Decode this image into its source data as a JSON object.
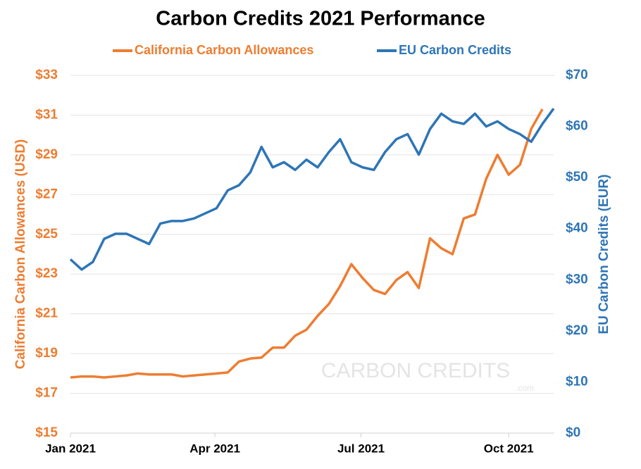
{
  "chart_data": {
    "type": "line",
    "title": "Carbon Credits 2021 Performance",
    "ylabel": "California Carbon Allowances (USD)",
    "y2label": "EU Carbon Credits (EUR)",
    "watermark": "CARBON CREDITS",
    "watermark_sub": ".com",
    "legend": "top",
    "x": [
      0,
      7,
      14,
      21,
      28,
      35,
      42,
      49,
      56,
      63,
      70,
      77,
      84,
      91,
      98,
      105,
      112,
      119,
      126,
      133,
      140,
      147,
      154,
      161,
      168,
      175,
      182,
      189,
      196,
      203,
      210,
      217,
      224,
      231,
      238,
      245,
      252,
      259,
      266,
      273,
      280,
      287,
      294,
      301
    ],
    "xlim": [
      0,
      301
    ],
    "xticks": [
      {
        "value": 0,
        "label": "Jan 2021"
      },
      {
        "value": 90,
        "label": "Apr 2021"
      },
      {
        "value": 181,
        "label": "Jul 2021"
      },
      {
        "value": 273,
        "label": "Oct 2021"
      }
    ],
    "ylim": [
      15,
      33
    ],
    "yticks": [
      {
        "value": 15,
        "label": "$15"
      },
      {
        "value": 17,
        "label": "$17"
      },
      {
        "value": 19,
        "label": "$19"
      },
      {
        "value": 21,
        "label": "$21"
      },
      {
        "value": 23,
        "label": "$23"
      },
      {
        "value": 25,
        "label": "$25"
      },
      {
        "value": 27,
        "label": "$27"
      },
      {
        "value": 29,
        "label": "$29"
      },
      {
        "value": 31,
        "label": "$31"
      },
      {
        "value": 33,
        "label": "$33"
      }
    ],
    "y2lim": [
      0,
      70
    ],
    "y2ticks": [
      {
        "value": 0,
        "label": "$0"
      },
      {
        "value": 10,
        "label": "$10"
      },
      {
        "value": 20,
        "label": "$20"
      },
      {
        "value": 30,
        "label": "$30"
      },
      {
        "value": 40,
        "label": "$40"
      },
      {
        "value": 50,
        "label": "$50"
      },
      {
        "value": 60,
        "label": "$60"
      },
      {
        "value": 70,
        "label": "$70"
      }
    ],
    "grid": true,
    "series": [
      {
        "name": "California Carbon Allowances",
        "color": "#ed7d31",
        "axis": "y",
        "values": [
          17.8,
          17.85,
          17.85,
          17.8,
          17.85,
          17.9,
          18.0,
          17.95,
          17.95,
          17.95,
          17.85,
          17.9,
          17.95,
          18.0,
          18.05,
          18.6,
          18.75,
          18.8,
          19.3,
          19.3,
          19.9,
          20.2,
          20.9,
          21.5,
          22.4,
          23.5,
          22.8,
          22.2,
          22.0,
          22.7,
          23.1,
          22.3,
          24.8,
          24.3,
          24.0,
          25.8,
          26.0,
          27.8,
          29.0,
          28.0,
          28.5,
          30.3,
          31.3,
          null
        ]
      },
      {
        "name": "EU Carbon Credits",
        "color": "#2e75b6",
        "axis": "y2",
        "values": [
          34,
          32,
          33.5,
          38,
          39,
          39,
          38,
          37,
          41,
          41.5,
          41.5,
          42,
          43,
          44,
          47.5,
          48.5,
          51,
          56,
          52,
          53,
          51.5,
          53.5,
          52,
          55,
          57.5,
          53,
          52,
          51.5,
          55,
          57.5,
          58.5,
          54.5,
          59.5,
          62.5,
          61,
          60.5,
          62.5,
          60,
          61,
          59.5,
          58.5,
          57,
          60.5,
          63.5
        ]
      }
    ]
  }
}
